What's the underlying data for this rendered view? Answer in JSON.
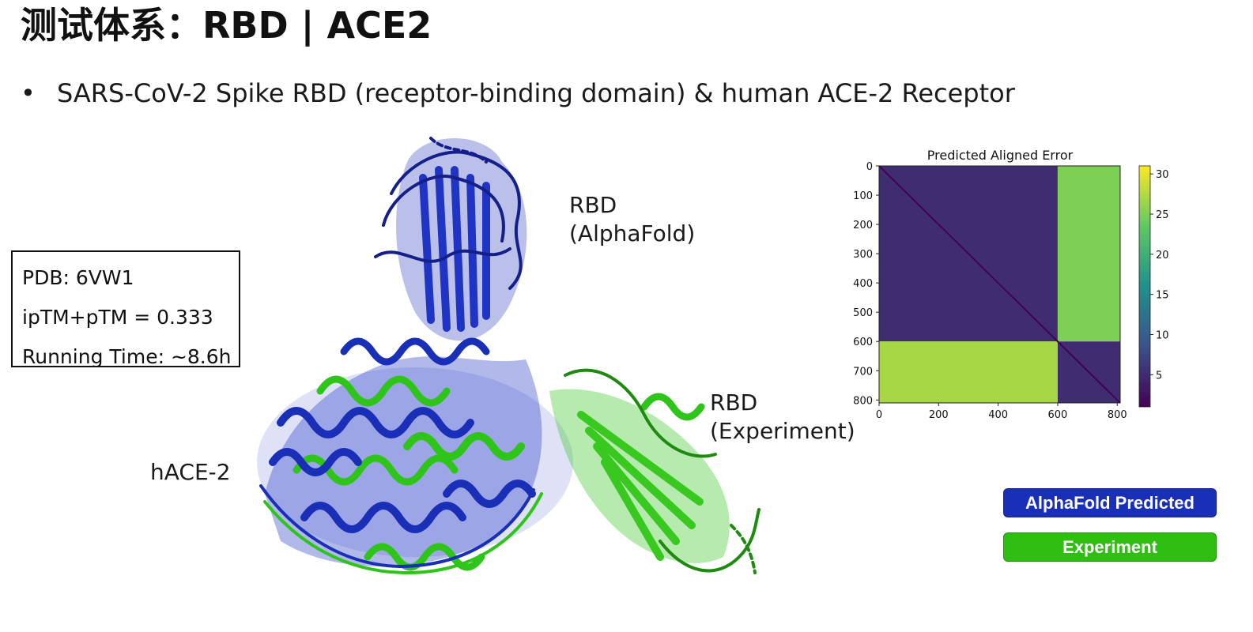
{
  "slide": {
    "title": "测试体系：RBD | ACE2",
    "bullet_marker": "•",
    "bullet": "SARS-CoV-2 Spike RBD (receptor-binding domain) & human ACE-2 Receptor"
  },
  "info_box": {
    "pdb": "PDB: 6VW1",
    "score": "ipTM+pTM = 0.333",
    "runtime": "Running Time: ~8.6h"
  },
  "labels": {
    "rbd_af_line1": "RBD",
    "rbd_af_line2": "(AlphaFold)",
    "rbd_exp_line1": "RBD",
    "rbd_exp_line2": "(Experiment)",
    "hace2": "hACE-2"
  },
  "legend": {
    "predicted": "AlphaFold Predicted",
    "experiment": "Experiment",
    "predicted_color": "#1a2fb8",
    "experiment_color": "#2fbf12"
  },
  "chart_data": {
    "type": "heatmap",
    "title": "Predicted Aligned Error",
    "xlabel": "",
    "ylabel": "",
    "xlim": [
      0,
      810
    ],
    "ylim": [
      810,
      0
    ],
    "x_ticks": [
      "0",
      "200",
      "400",
      "600",
      "800"
    ],
    "y_ticks": [
      "0",
      "100",
      "200",
      "300",
      "400",
      "500",
      "600",
      "700",
      "800"
    ],
    "colorbar_ticks": [
      "30",
      "25",
      "20",
      "15",
      "10",
      "5"
    ],
    "colorbar_range": [
      1,
      31
    ],
    "colormap": "viridis",
    "blocks": [
      {
        "rows": [
          0,
          600
        ],
        "cols": [
          0,
          600
        ],
        "value": 5
      },
      {
        "rows": [
          0,
          600
        ],
        "cols": [
          600,
          810
        ],
        "value": 25
      },
      {
        "rows": [
          600,
          810
        ],
        "cols": [
          0,
          600
        ],
        "value": 27
      },
      {
        "rows": [
          600,
          810
        ],
        "cols": [
          600,
          810
        ],
        "value": 5
      }
    ]
  }
}
